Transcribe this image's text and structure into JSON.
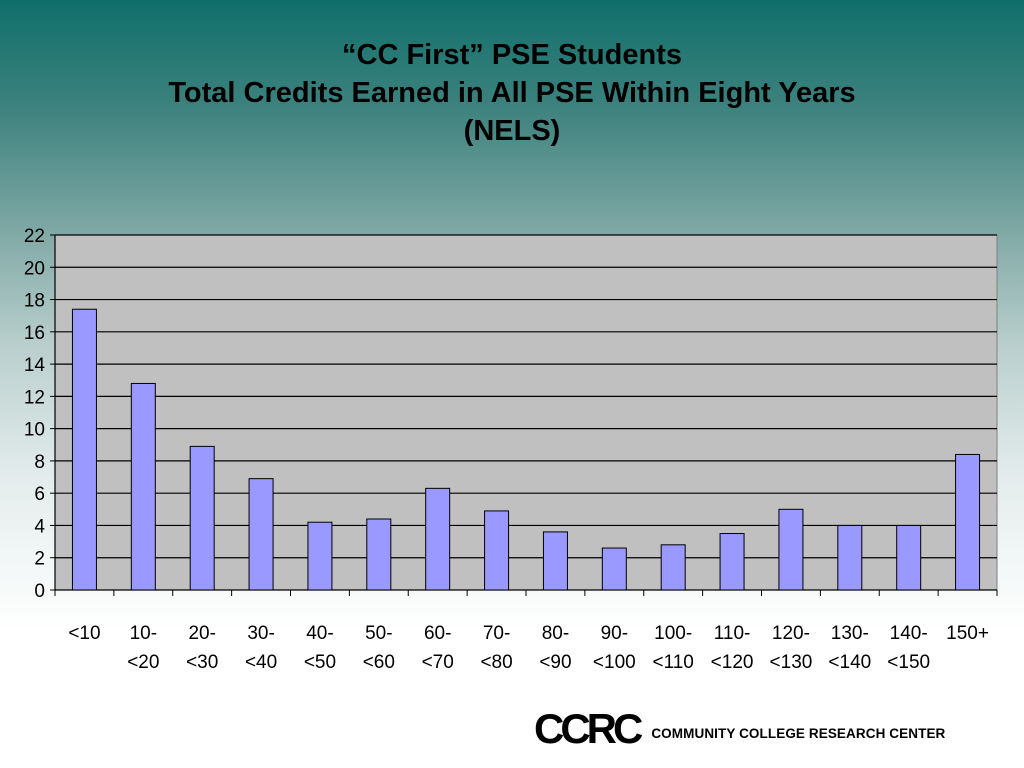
{
  "title": {
    "line1": "“CC First” PSE Students",
    "line2": "Total Credits Earned in All PSE Within Eight Years",
    "line3": "(NELS)"
  },
  "logo": {
    "mark": "CCRC",
    "text": "COMMUNITY COLLEGE RESEARCH CENTER"
  },
  "chart_data": {
    "type": "bar",
    "categories": [
      [
        "<10"
      ],
      [
        "10-",
        "<20"
      ],
      [
        "20-",
        "<30"
      ],
      [
        "30-",
        "<40"
      ],
      [
        "40-",
        "<50"
      ],
      [
        "50-",
        "<60"
      ],
      [
        "60-",
        "<70"
      ],
      [
        "70-",
        "<80"
      ],
      [
        "80-",
        "<90"
      ],
      [
        "90-",
        "<100"
      ],
      [
        "100-",
        "<110"
      ],
      [
        "110-",
        "<120"
      ],
      [
        "120-",
        "<130"
      ],
      [
        "130-",
        "<140"
      ],
      [
        "140-",
        "<150"
      ],
      [
        "150+"
      ]
    ],
    "values": [
      17.4,
      12.8,
      8.9,
      6.9,
      4.2,
      4.4,
      6.3,
      4.9,
      3.6,
      2.6,
      2.8,
      3.5,
      5.0,
      4.0,
      4.0,
      8.4
    ],
    "ylim": [
      0,
      22
    ],
    "yticks": [
      0,
      2,
      4,
      6,
      8,
      10,
      12,
      14,
      16,
      18,
      20,
      22
    ],
    "grid": true,
    "colors": {
      "bar": "#9999ff",
      "plot_bg": "#c0c0c0"
    }
  }
}
